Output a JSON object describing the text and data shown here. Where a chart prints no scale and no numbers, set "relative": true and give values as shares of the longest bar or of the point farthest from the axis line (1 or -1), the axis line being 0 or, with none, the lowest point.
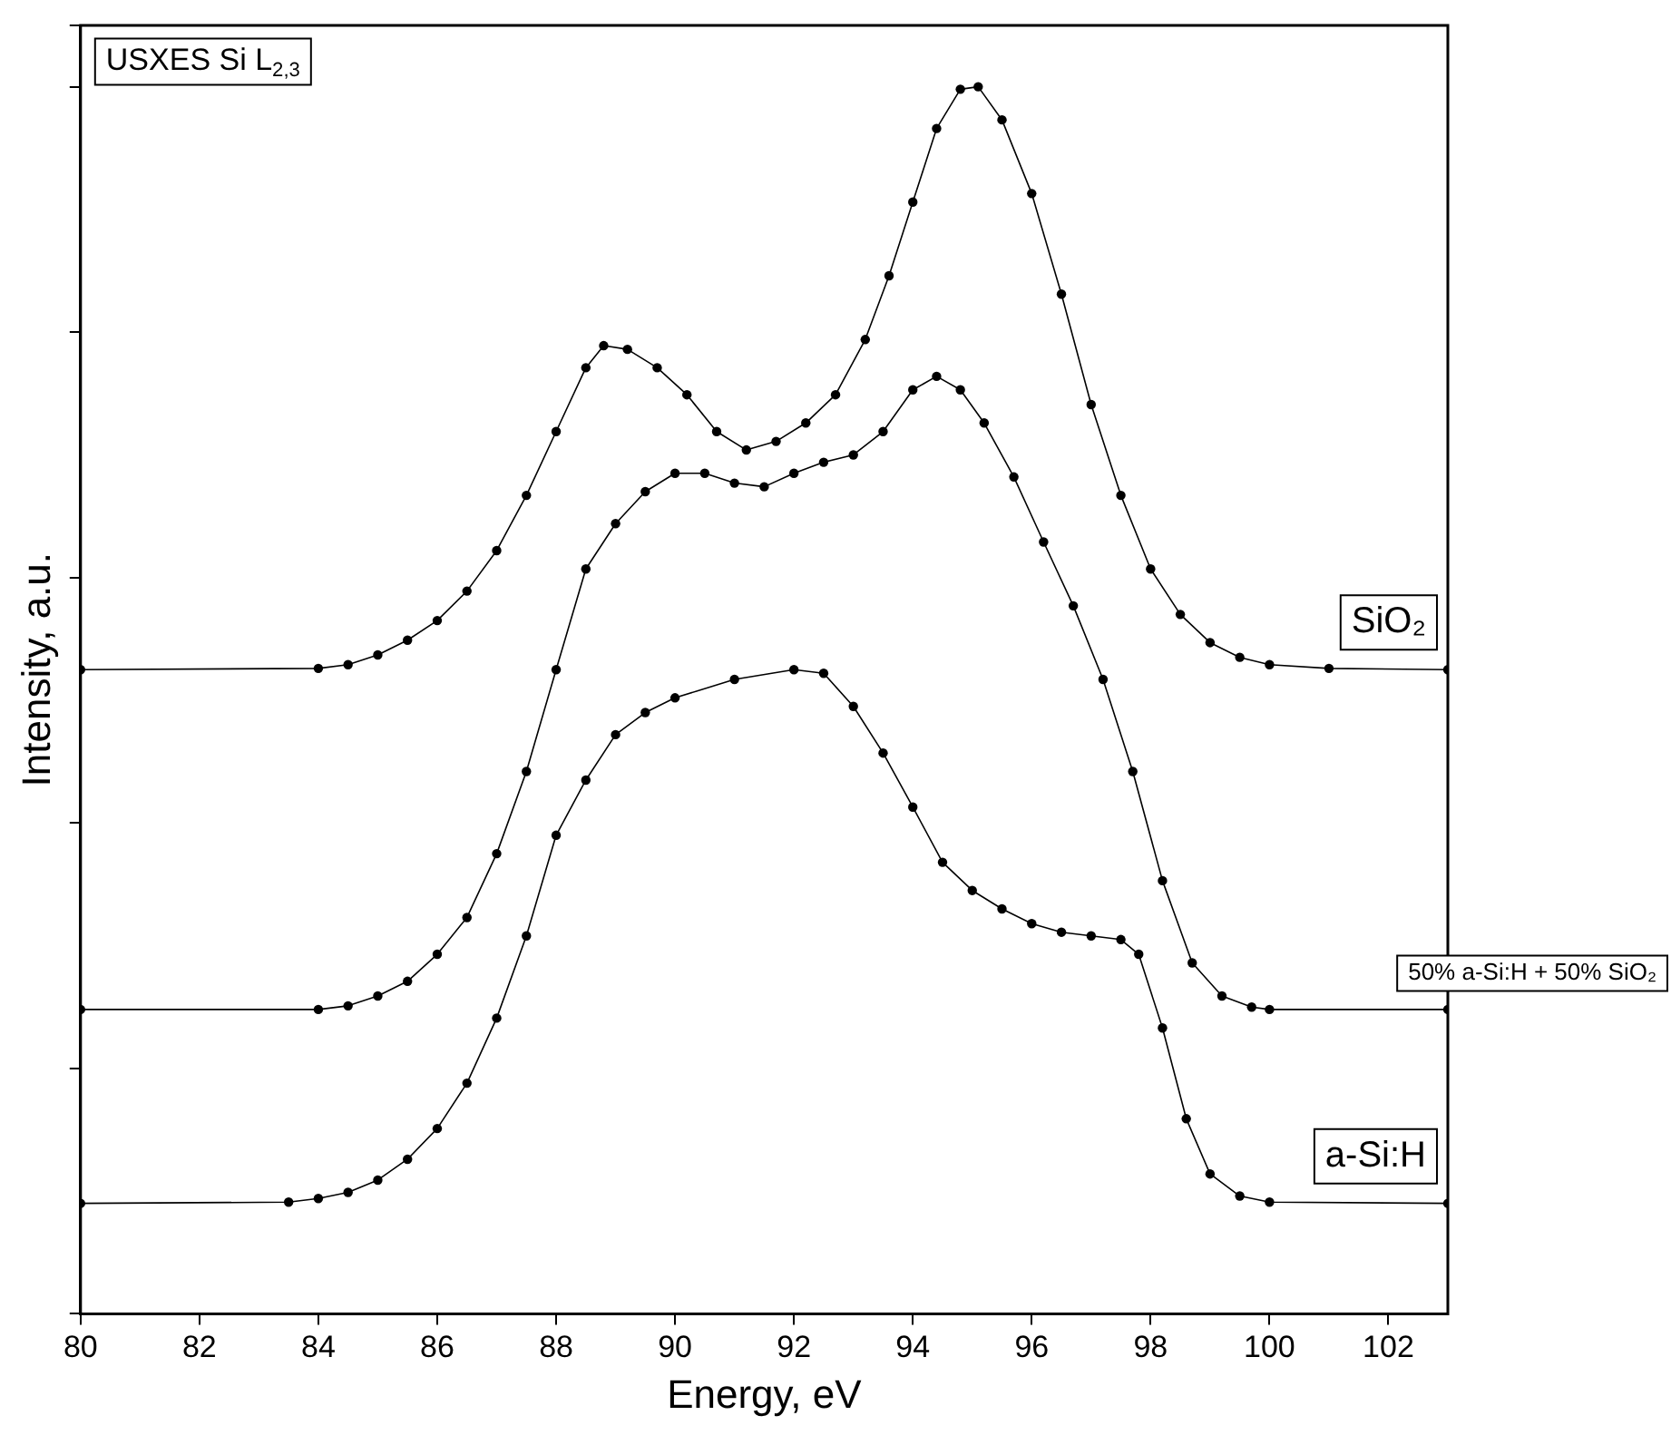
{
  "chart_data": {
    "type": "line",
    "relative": true,
    "xlabel": "Energy, eV",
    "ylabel": "Intensity, a.u.",
    "xlim": [
      80,
      103
    ],
    "xticks": [
      80,
      82,
      84,
      86,
      88,
      90,
      92,
      94,
      96,
      98,
      100,
      102
    ],
    "tick_labels": "x",
    "grid": false,
    "legend": false,
    "marker": "circle",
    "line_style": "solid",
    "annotations": [
      "USXES Si L$_{2,3}$"
    ],
    "series": [
      {
        "name": "SiO₂",
        "color": "#000000",
        "x": [
          80,
          84,
          84.5,
          85,
          85.5,
          86,
          86.5,
          87,
          87.5,
          88,
          88.5,
          88.8,
          89.2,
          89.7,
          90.2,
          90.7,
          91.2,
          91.7,
          92.2,
          92.7,
          93.2,
          93.6,
          94,
          94.4,
          94.8,
          95.1,
          95.5,
          96,
          96.5,
          97,
          97.5,
          98,
          98.5,
          99,
          99.5,
          100,
          101,
          103
        ],
        "values": [
          0.525,
          0.526,
          0.529,
          0.537,
          0.549,
          0.565,
          0.589,
          0.622,
          0.667,
          0.719,
          0.771,
          0.789,
          0.786,
          0.771,
          0.749,
          0.719,
          0.704,
          0.711,
          0.726,
          0.749,
          0.794,
          0.846,
          0.906,
          0.966,
          0.998,
          1,
          0.973,
          0.913,
          0.831,
          0.741,
          0.667,
          0.607,
          0.57,
          0.547,
          0.535,
          0.529,
          0.526,
          0.525
        ]
      },
      {
        "name": "50% a-Si:H + 50% SiO₂",
        "color": "#000000",
        "x": [
          80,
          84,
          84.5,
          85,
          85.5,
          86,
          86.5,
          87,
          87.5,
          88,
          88.5,
          89,
          89.5,
          90,
          90.5,
          91,
          91.5,
          92,
          92.5,
          93,
          93.5,
          94,
          94.4,
          94.8,
          95.2,
          95.7,
          96.2,
          96.7,
          97.2,
          97.7,
          98.2,
          98.7,
          99.2,
          99.7,
          100,
          103
        ],
        "values": [
          0.248,
          0.248,
          0.251,
          0.259,
          0.271,
          0.293,
          0.323,
          0.375,
          0.442,
          0.525,
          0.607,
          0.644,
          0.67,
          0.685,
          0.685,
          0.677,
          0.674,
          0.685,
          0.694,
          0.7,
          0.719,
          0.753,
          0.764,
          0.753,
          0.726,
          0.682,
          0.629,
          0.577,
          0.517,
          0.442,
          0.353,
          0.286,
          0.259,
          0.25,
          0.248,
          0.248
        ]
      },
      {
        "name": "a-Si:H",
        "color": "#000000",
        "x": [
          80,
          83.5,
          84,
          84.5,
          85,
          85.5,
          86,
          86.5,
          87,
          87.5,
          88,
          88.5,
          89,
          89.5,
          90,
          91,
          92,
          92.5,
          93,
          93.5,
          94,
          94.5,
          95,
          95.5,
          96,
          96.5,
          97,
          97.5,
          97.8,
          98.2,
          98.6,
          99,
          99.5,
          100,
          103
        ],
        "values": [
          0.09,
          0.091,
          0.094,
          0.099,
          0.109,
          0.126,
          0.151,
          0.188,
          0.241,
          0.308,
          0.39,
          0.435,
          0.472,
          0.49,
          0.502,
          0.517,
          0.525,
          0.522,
          0.495,
          0.457,
          0.413,
          0.368,
          0.345,
          0.33,
          0.318,
          0.311,
          0.308,
          0.305,
          0.293,
          0.233,
          0.159,
          0.114,
          0.096,
          0.091,
          0.09
        ]
      }
    ]
  }
}
